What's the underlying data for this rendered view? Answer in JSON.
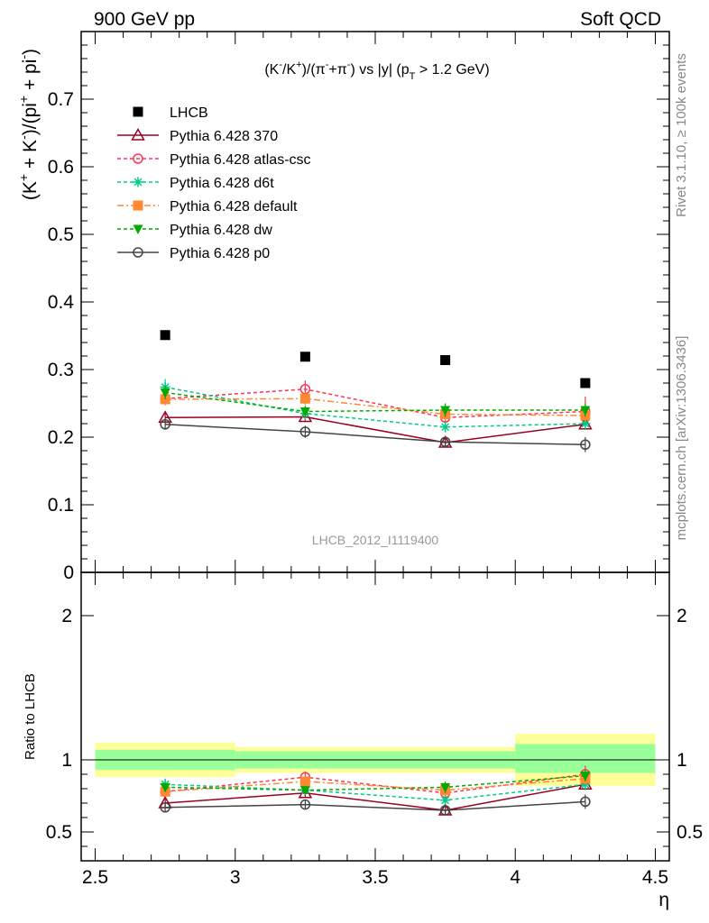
{
  "header": {
    "left_label": "900 GeV pp",
    "right_label": "Soft QCD"
  },
  "side_labels": {
    "rivet": "Rivet 3.1.10, ≥ 100k events",
    "mcplots": "mcplots.cern.ch [arXiv:1306.3436]"
  },
  "chart_data": {
    "type": "scatter",
    "title_parts": {
      "a": "(K",
      "a_sup": "-",
      "b": "/K",
      "b_sup": "+",
      "c": ")/(π",
      "c_sup": "-",
      "d": "+π",
      "d_sup": "-",
      "e": ") vs |y| (p",
      "e_sub": "T",
      "f": " > 1.2 GeV)"
    },
    "ylabel_parts": {
      "a": "(K",
      "a_sup": "+",
      "b": " + K",
      "b_sup": "-",
      "c": ")/(pi",
      "c_sup": "+",
      "d": " + pi",
      "d_sup": "-",
      "e": ")"
    },
    "xlabel": "η",
    "ratio_ylabel": "Ratio to LHCB",
    "watermark": "LHCB_2012_I1119400",
    "xlim": [
      2.45,
      4.55
    ],
    "ylim": [
      0,
      0.8
    ],
    "ratio_ylim": [
      0.3,
      2.3
    ],
    "x_ticks": [
      "2.5",
      "3",
      "3.5",
      "4",
      "4.5"
    ],
    "y_ticks": [
      "0",
      "0.1",
      "0.2",
      "0.3",
      "0.4",
      "0.5",
      "0.6",
      "0.7"
    ],
    "ratio_ticks": [
      "0.5",
      "1",
      "2"
    ],
    "x": [
      2.75,
      3.25,
      3.75,
      4.25
    ],
    "bins": [
      [
        2.5,
        3.0
      ],
      [
        3.0,
        4.0
      ],
      [
        4.0,
        4.5
      ]
    ],
    "ratio_bands": [
      {
        "x0": 2.5,
        "x1": 3.0,
        "inner": [
          0.93,
          1.07
        ],
        "outer": [
          0.88,
          1.12
        ]
      },
      {
        "x0": 3.0,
        "x1": 4.0,
        "inner": [
          0.94,
          1.06
        ],
        "outer": [
          0.91,
          1.09
        ]
      },
      {
        "x0": 4.0,
        "x1": 4.5,
        "inner": [
          0.91,
          1.11
        ],
        "outer": [
          0.82,
          1.18
        ]
      }
    ],
    "series": [
      {
        "name": "LHCB",
        "color": "#000000",
        "marker": "square-filled",
        "dash": "none",
        "values": [
          0.351,
          0.319,
          0.314,
          0.28
        ],
        "errors": [
          0.0,
          0.0,
          0.0,
          0.0
        ],
        "ratio": [
          1,
          1,
          1,
          1
        ],
        "ratio_errors": [
          0,
          0,
          0,
          0
        ]
      },
      {
        "name": "Pythia 6.428 370",
        "color": "#990022",
        "marker": "triangle-open",
        "dash": "none",
        "values": [
          0.229,
          0.23,
          0.192,
          0.219
        ],
        "errors": [
          0.008,
          0.008,
          0.007,
          0.008
        ],
        "ratio": [
          0.7,
          0.77,
          0.65,
          0.83
        ],
        "ratio_errors": [
          0.03,
          0.03,
          0.03,
          0.04
        ]
      },
      {
        "name": "Pythia 6.428 atlas-csc",
        "color": "#ff3355",
        "marker": "circle-open",
        "dash": "4,3",
        "values": [
          0.257,
          0.271,
          0.229,
          0.238
        ],
        "errors": [
          0.008,
          0.013,
          0.012,
          0.022
        ],
        "ratio": [
          0.78,
          0.88,
          0.77,
          0.9
        ],
        "ratio_errors": [
          0.03,
          0.04,
          0.04,
          0.06
        ]
      },
      {
        "name": "Pythia 6.428 d6t",
        "color": "#00cc88",
        "marker": "asterisk",
        "dash": "4,3",
        "values": [
          0.274,
          0.235,
          0.215,
          0.22
        ],
        "errors": [
          0.012,
          0.01,
          0.008,
          0.009
        ],
        "ratio": [
          0.83,
          0.79,
          0.72,
          0.83
        ],
        "ratio_errors": [
          0.04,
          0.03,
          0.03,
          0.04
        ]
      },
      {
        "name": "Pythia 6.428 default",
        "color": "#ff8833",
        "marker": "square-filled",
        "dash": "7,3,2,3",
        "values": [
          0.256,
          0.257,
          0.234,
          0.232
        ],
        "errors": [
          0.009,
          0.009,
          0.009,
          0.009
        ],
        "ratio": [
          0.78,
          0.85,
          0.79,
          0.87
        ],
        "ratio_errors": [
          0.03,
          0.03,
          0.03,
          0.04
        ]
      },
      {
        "name": "Pythia 6.428 dw",
        "color": "#00aa00",
        "marker": "triangle-down-filled",
        "dash": "4,3",
        "values": [
          0.266,
          0.238,
          0.24,
          0.24
        ],
        "errors": [
          0.01,
          0.009,
          0.01,
          0.01
        ],
        "ratio": [
          0.81,
          0.79,
          0.81,
          0.89
        ],
        "ratio_errors": [
          0.03,
          0.03,
          0.04,
          0.04
        ]
      },
      {
        "name": "Pythia 6.428 p0",
        "color": "#444444",
        "marker": "circle-open",
        "dash": "none",
        "values": [
          0.219,
          0.208,
          0.193,
          0.189
        ],
        "errors": [
          0.008,
          0.009,
          0.008,
          0.011
        ],
        "ratio": [
          0.67,
          0.69,
          0.65,
          0.71
        ],
        "ratio_errors": [
          0.03,
          0.03,
          0.03,
          0.05
        ]
      }
    ]
  }
}
